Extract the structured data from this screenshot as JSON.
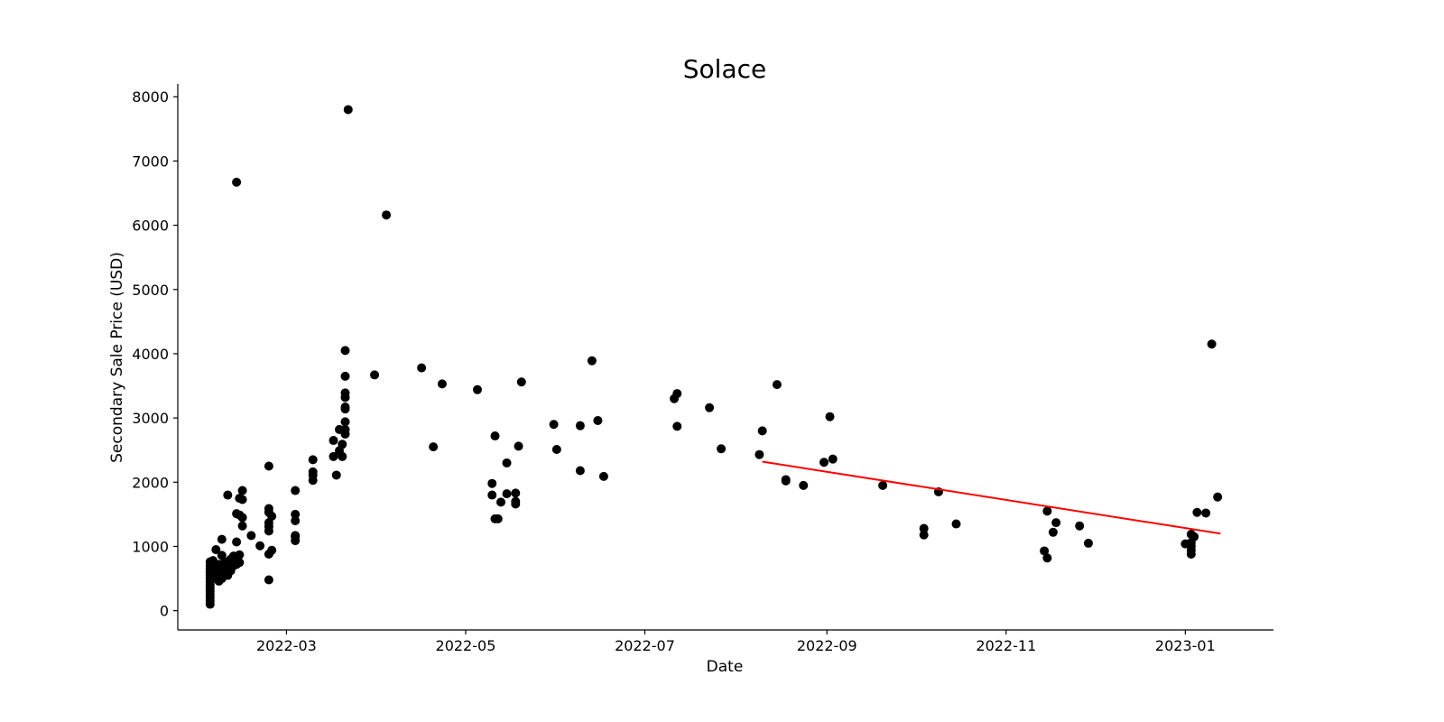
{
  "chart_data": {
    "type": "scatter",
    "title": "Solace",
    "xlabel": "Date",
    "ylabel": "Secondary Sale Price (USD)",
    "xlim": [
      "2022-01-23",
      "2023-01-31"
    ],
    "ylim": [
      -300,
      8200
    ],
    "grid": false,
    "x_ticks": [
      "2022-03-01",
      "2022-05-01",
      "2022-07-01",
      "2022-09-01",
      "2022-11-01",
      "2023-01-01"
    ],
    "x_tick_labels": [
      "2022-03",
      "2022-05",
      "2022-07",
      "2022-09",
      "2022-11",
      "2023-01"
    ],
    "y_ticks": [
      0,
      1000,
      2000,
      3000,
      4000,
      5000,
      6000,
      7000,
      8000
    ],
    "y_tick_labels": [
      "0",
      "1000",
      "2000",
      "3000",
      "4000",
      "5000",
      "6000",
      "7000",
      "8000"
    ],
    "marker_color": "#000000",
    "trend_color": "#ff0000",
    "points": [
      [
        "2022-02-03",
        100
      ],
      [
        "2022-02-03",
        150
      ],
      [
        "2022-02-03",
        200
      ],
      [
        "2022-02-03",
        250
      ],
      [
        "2022-02-03",
        300
      ],
      [
        "2022-02-03",
        350
      ],
      [
        "2022-02-03",
        400
      ],
      [
        "2022-02-03",
        450
      ],
      [
        "2022-02-03",
        500
      ],
      [
        "2022-02-03",
        550
      ],
      [
        "2022-02-03",
        600
      ],
      [
        "2022-02-03",
        650
      ],
      [
        "2022-02-03",
        700
      ],
      [
        "2022-02-03",
        760
      ],
      [
        "2022-02-04",
        550
      ],
      [
        "2022-02-04",
        620
      ],
      [
        "2022-02-04",
        700
      ],
      [
        "2022-02-04",
        780
      ],
      [
        "2022-02-05",
        500
      ],
      [
        "2022-02-05",
        600
      ],
      [
        "2022-02-05",
        950
      ],
      [
        "2022-02-06",
        460
      ],
      [
        "2022-02-06",
        560
      ],
      [
        "2022-02-06",
        650
      ],
      [
        "2022-02-06",
        720
      ],
      [
        "2022-02-07",
        500
      ],
      [
        "2022-02-07",
        600
      ],
      [
        "2022-02-07",
        860
      ],
      [
        "2022-02-07",
        1110
      ],
      [
        "2022-02-08",
        560
      ],
      [
        "2022-02-08",
        640
      ],
      [
        "2022-02-08",
        760
      ],
      [
        "2022-02-09",
        550
      ],
      [
        "2022-02-09",
        650
      ],
      [
        "2022-02-09",
        1800
      ],
      [
        "2022-02-10",
        620
      ],
      [
        "2022-02-10",
        700
      ],
      [
        "2022-02-10",
        800
      ],
      [
        "2022-02-11",
        700
      ],
      [
        "2022-02-11",
        780
      ],
      [
        "2022-02-11",
        850
      ],
      [
        "2022-02-12",
        720
      ],
      [
        "2022-02-12",
        800
      ],
      [
        "2022-02-12",
        1070
      ],
      [
        "2022-02-12",
        1510
      ],
      [
        "2022-02-12",
        6670
      ],
      [
        "2022-02-13",
        750
      ],
      [
        "2022-02-13",
        870
      ],
      [
        "2022-02-13",
        1490
      ],
      [
        "2022-02-13",
        1750
      ],
      [
        "2022-02-14",
        1320
      ],
      [
        "2022-02-14",
        1450
      ],
      [
        "2022-02-14",
        1730
      ],
      [
        "2022-02-14",
        1870
      ],
      [
        "2022-02-17",
        1170
      ],
      [
        "2022-02-20",
        1010
      ],
      [
        "2022-02-23",
        480
      ],
      [
        "2022-02-23",
        880
      ],
      [
        "2022-02-23",
        1240
      ],
      [
        "2022-02-23",
        1310
      ],
      [
        "2022-02-23",
        1370
      ],
      [
        "2022-02-23",
        1530
      ],
      [
        "2022-02-23",
        1590
      ],
      [
        "2022-02-23",
        2250
      ],
      [
        "2022-02-24",
        940
      ],
      [
        "2022-02-24",
        1470
      ],
      [
        "2022-03-04",
        1090
      ],
      [
        "2022-03-04",
        1150
      ],
      [
        "2022-03-04",
        1170
      ],
      [
        "2022-03-04",
        1400
      ],
      [
        "2022-03-04",
        1500
      ],
      [
        "2022-03-04",
        1870
      ],
      [
        "2022-03-10",
        2030
      ],
      [
        "2022-03-10",
        2110
      ],
      [
        "2022-03-10",
        2160
      ],
      [
        "2022-03-10",
        2350
      ],
      [
        "2022-03-17",
        2400
      ],
      [
        "2022-03-17",
        2650
      ],
      [
        "2022-03-18",
        2110
      ],
      [
        "2022-03-19",
        2490
      ],
      [
        "2022-03-19",
        2820
      ],
      [
        "2022-03-20",
        2400
      ],
      [
        "2022-03-20",
        2590
      ],
      [
        "2022-03-21",
        2750
      ],
      [
        "2022-03-21",
        2820
      ],
      [
        "2022-03-21",
        2940
      ],
      [
        "2022-03-21",
        3140
      ],
      [
        "2022-03-21",
        3170
      ],
      [
        "2022-03-21",
        3320
      ],
      [
        "2022-03-21",
        3390
      ],
      [
        "2022-03-21",
        3650
      ],
      [
        "2022-03-21",
        4050
      ],
      [
        "2022-03-22",
        7800
      ],
      [
        "2022-03-31",
        3670
      ],
      [
        "2022-04-04",
        6160
      ],
      [
        "2022-04-16",
        3780
      ],
      [
        "2022-04-20",
        2550
      ],
      [
        "2022-04-23",
        3530
      ],
      [
        "2022-05-05",
        3440
      ],
      [
        "2022-05-10",
        1800
      ],
      [
        "2022-05-10",
        1980
      ],
      [
        "2022-05-11",
        1430
      ],
      [
        "2022-05-11",
        2720
      ],
      [
        "2022-05-12",
        1430
      ],
      [
        "2022-05-13",
        1690
      ],
      [
        "2022-05-15",
        1820
      ],
      [
        "2022-05-15",
        2300
      ],
      [
        "2022-05-18",
        1660
      ],
      [
        "2022-05-18",
        1700
      ],
      [
        "2022-05-18",
        1830
      ],
      [
        "2022-05-19",
        2560
      ],
      [
        "2022-05-20",
        3560
      ],
      [
        "2022-05-31",
        2900
      ],
      [
        "2022-06-01",
        2510
      ],
      [
        "2022-06-09",
        2180
      ],
      [
        "2022-06-09",
        2880
      ],
      [
        "2022-06-13",
        3890
      ],
      [
        "2022-06-15",
        2960
      ],
      [
        "2022-06-17",
        2090
      ],
      [
        "2022-07-11",
        3300
      ],
      [
        "2022-07-12",
        3380
      ],
      [
        "2022-07-12",
        2870
      ],
      [
        "2022-07-23",
        3160
      ],
      [
        "2022-07-27",
        2520
      ],
      [
        "2022-08-09",
        2430
      ],
      [
        "2022-08-10",
        2800
      ],
      [
        "2022-08-15",
        3520
      ],
      [
        "2022-08-18",
        2020
      ],
      [
        "2022-08-18",
        2040
      ],
      [
        "2022-08-24",
        1950
      ],
      [
        "2022-08-31",
        2310
      ],
      [
        "2022-09-02",
        3020
      ],
      [
        "2022-09-03",
        2360
      ],
      [
        "2022-09-20",
        1950
      ],
      [
        "2022-10-04",
        1180
      ],
      [
        "2022-10-04",
        1280
      ],
      [
        "2022-10-09",
        1850
      ],
      [
        "2022-10-15",
        1350
      ],
      [
        "2022-11-14",
        930
      ],
      [
        "2022-11-15",
        820
      ],
      [
        "2022-11-15",
        1550
      ],
      [
        "2022-11-17",
        1220
      ],
      [
        "2022-11-18",
        1370
      ],
      [
        "2022-11-26",
        1320
      ],
      [
        "2022-11-29",
        1050
      ],
      [
        "2023-01-01",
        1040
      ],
      [
        "2023-01-03",
        880
      ],
      [
        "2023-01-03",
        940
      ],
      [
        "2023-01-03",
        1000
      ],
      [
        "2023-01-03",
        1060
      ],
      [
        "2023-01-03",
        1190
      ],
      [
        "2023-01-04",
        1150
      ],
      [
        "2023-01-05",
        1530
      ],
      [
        "2023-01-08",
        1520
      ],
      [
        "2023-01-10",
        4150
      ],
      [
        "2023-01-12",
        1770
      ]
    ],
    "trend_line": {
      "x": [
        "2022-08-10",
        "2023-01-13"
      ],
      "y": [
        2320,
        1200
      ]
    }
  }
}
